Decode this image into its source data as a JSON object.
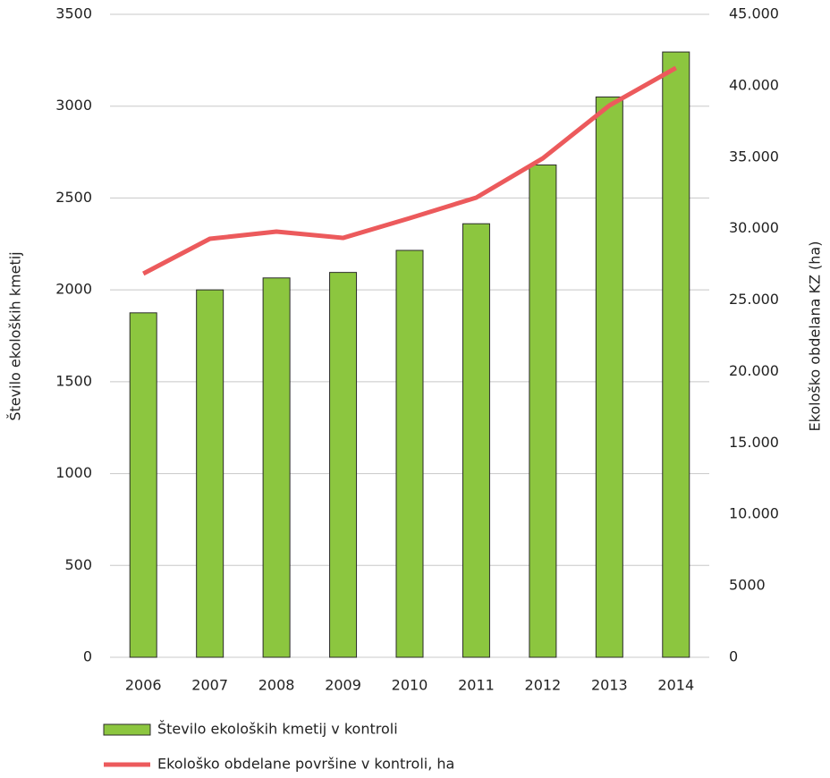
{
  "chart_data": {
    "type": "bar",
    "y_label": "Število ekoloških kmetij",
    "y2_label": "Ekološko obdelana KZ (ha)",
    "categories": [
      "2006",
      "2007",
      "2008",
      "2009",
      "2010",
      "2011",
      "2012",
      "2013",
      "2014"
    ],
    "series": [
      {
        "name": "Število ekoloških kmetij v kontroli",
        "color": "#8cc63f",
        "type": "bar",
        "values": [
          1875,
          2000,
          2065,
          2095,
          2215,
          2360,
          2680,
          3050,
          3295
        ]
      },
      {
        "name": "Ekološko obdelane površine v kontroli, ha",
        "color": "#ec5a5c",
        "type": "line",
        "axis": "y2",
        "values": [
          26850,
          29290,
          29790,
          29350,
          30730,
          32170,
          34920,
          38620,
          41250
        ]
      }
    ],
    "ylim": [
      0,
      3500
    ],
    "yticks": [
      0,
      500,
      1000,
      1500,
      2000,
      2500,
      3000,
      3500
    ],
    "y2lim": [
      0,
      45000
    ],
    "y2ticks": [
      0,
      5000,
      {
        "value": 10000,
        "label": "10.000"
      },
      {
        "value": 15000,
        "label": "15.000"
      },
      {
        "value": 20000,
        "label": "20.000"
      },
      {
        "value": 25000,
        "label": "25.000"
      },
      {
        "value": 30000,
        "label": "30.000"
      },
      {
        "value": 35000,
        "label": "35.000"
      },
      {
        "value": 40000,
        "label": "40.000"
      },
      {
        "value": 45000,
        "label": "45.000"
      }
    ],
    "grid": true
  }
}
